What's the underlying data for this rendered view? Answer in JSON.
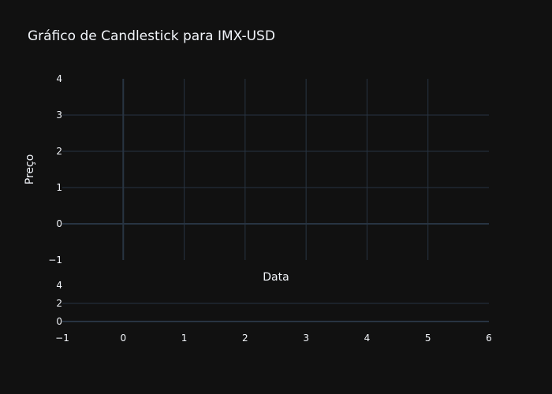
{
  "chart_data": {
    "type": "candlestick",
    "title": "Gráfico de Candlestick para IMX-USD",
    "xlabel": "Data",
    "ylabel": "Preço",
    "series": [],
    "x": [],
    "main_panel": {
      "xlim": [
        -1,
        6
      ],
      "x_ticks": [
        "0",
        "1",
        "2",
        "3",
        "4",
        "5"
      ],
      "ylim": [
        -1,
        4
      ],
      "y_ticks": [
        "−1",
        "0",
        "1",
        "2",
        "3",
        "4"
      ],
      "grid": true
    },
    "volume_panel": {
      "xlim": [
        -1,
        6
      ],
      "x_ticks": [
        "−1",
        "0",
        "1",
        "2",
        "3",
        "4",
        "5",
        "6"
      ],
      "ylim": [
        -0.5,
        4
      ],
      "y_ticks": [
        "0",
        "2",
        "4"
      ],
      "grid": true
    },
    "colors": {
      "background": "#111111",
      "grid": "#283442",
      "text": "#f2f5fa"
    }
  }
}
